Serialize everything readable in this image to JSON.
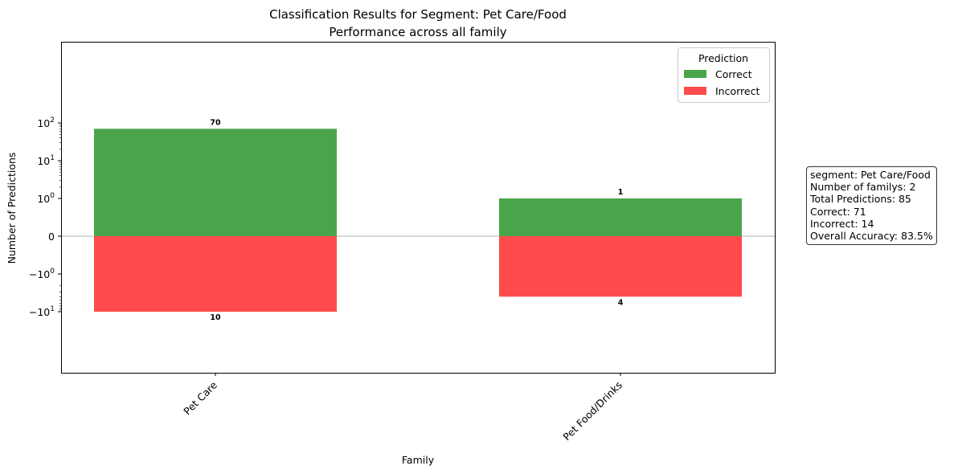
{
  "chart_data": {
    "type": "bar",
    "title": "Classification Results for Segment: Pet Care/Food",
    "subtitle": "Performance across all family",
    "xlabel": "Family",
    "ylabel": "Number of Predictions",
    "yscale": "symlog",
    "categories": [
      "Pet Care",
      "Pet Food/Drinks"
    ],
    "series": [
      {
        "name": "Correct",
        "values": [
          70,
          1
        ],
        "color": "#4aa54a"
      },
      {
        "name": "Incorrect",
        "values": [
          -10,
          -4
        ],
        "color": "#ff4b4b"
      }
    ],
    "data_labels": {
      "Correct": [
        "70",
        "1"
      ],
      "Incorrect": [
        "10",
        "4"
      ]
    },
    "ytick_labels": [
      {
        "value": 100,
        "base": "10",
        "exp": "2"
      },
      {
        "value": 10,
        "base": "10",
        "exp": "1"
      },
      {
        "value": 1,
        "base": "10",
        "exp": "0"
      },
      {
        "value": 0,
        "base": "0",
        "exp": ""
      },
      {
        "value": -1,
        "base": "−10",
        "exp": "0"
      },
      {
        "value": -10,
        "base": "−10",
        "exp": "1"
      }
    ],
    "legend": {
      "title": "Prediction",
      "position": "top-right"
    },
    "zero_line": true,
    "grid": false
  },
  "stats_box": {
    "lines": [
      "segment: Pet Care/Food",
      "Number of familys: 2",
      "Total Predictions: 85",
      "Correct: 71",
      "Incorrect: 14",
      "Overall Accuracy: 83.5%"
    ]
  }
}
